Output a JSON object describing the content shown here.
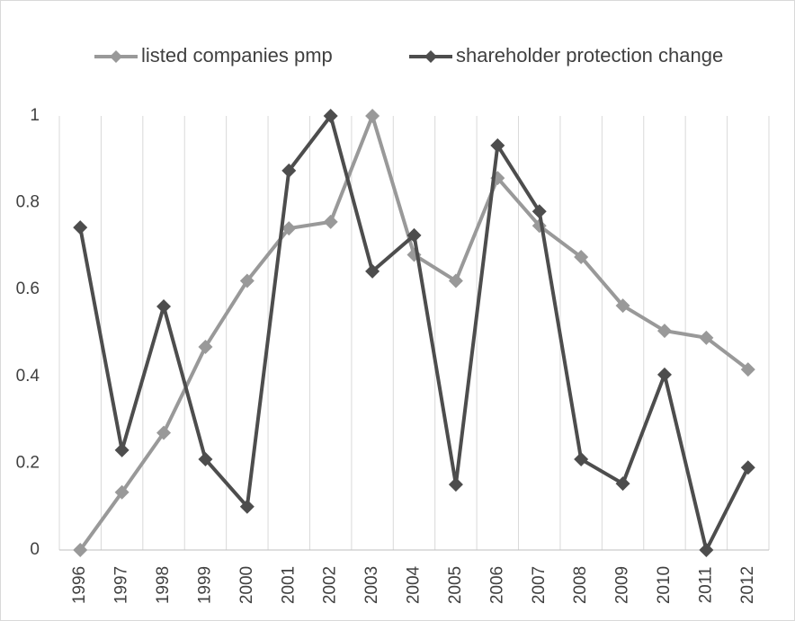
{
  "chart_data": {
    "type": "line",
    "categories": [
      "1996",
      "1997",
      "1998",
      "1999",
      "2000",
      "2001",
      "2002",
      "2003",
      "2004",
      "2005",
      "2006",
      "2007",
      "2008",
      "2009",
      "2010",
      "2011",
      "2012"
    ],
    "series": [
      {
        "name": "listed companies pmp",
        "color": "#999999",
        "values": [
          0,
          0.133,
          0.27,
          0.468,
          0.62,
          0.741,
          0.756,
          1,
          0.68,
          0.62,
          0.857,
          0.747,
          0.675,
          0.563,
          0.505,
          0.489,
          0.416
        ]
      },
      {
        "name": "shareholder protection change",
        "color": "#4d4d4d",
        "values": [
          0.743,
          0.23,
          0.561,
          0.209,
          0.1,
          0.874,
          1,
          0.642,
          0.725,
          0.151,
          0.932,
          0.78,
          0.209,
          0.153,
          0.404,
          0,
          0.19
        ]
      }
    ],
    "ylim": [
      0,
      1
    ],
    "yticks": [
      0,
      0.2,
      0.4,
      0.6,
      0.8,
      1
    ],
    "grid": true,
    "legend": "top"
  }
}
